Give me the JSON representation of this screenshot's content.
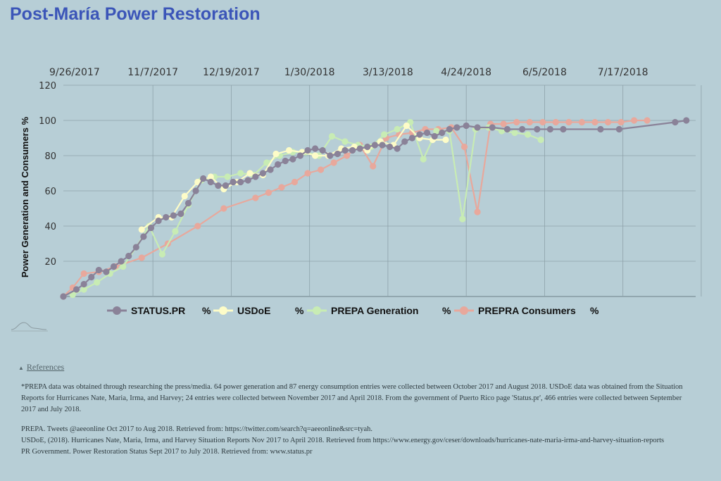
{
  "page": {
    "title": "Post-María Power Restoration",
    "references_label": "References",
    "footnote": "*PREPA data was obtained through researching the press/media. 64 power generation and 87 energy consumption entries were collected between October 2017 and August 2018. USDoE data was obtained from the Situation Reports for Hurricanes Nate, Maria, Irma, and Harvey; 24 entries were collected between November 2017 and April 2018. From the government of Puerto Rico page 'Status.pr', 466 entries were collected between September 2017 and July 2018.",
    "citations": [
      "PREPA. Tweets @aeeonline Oct 2017 to Aug 2018. Retrieved from: https://twitter.com/search?q=aeeonline&src=tyah.",
      "USDoE, (2018). Hurricanes Nate, Maria, Irma, and Harvey Situation Reports Nov 2017 to April 2018. Retrieved from https://www.energy.gov/ceser/downloads/hurricanes-nate-maria-irma-and-harvey-situation-reports",
      "PR Government. Power Restoration Status Sept 2017 to July 2018. Retrieved from: www.status.pr"
    ],
    "colors": {
      "background": "#b7ced6",
      "title": "#3b55b8"
    }
  },
  "chart_data": {
    "type": "line",
    "ylabel": "Power Generation and Consumers %",
    "ylim": [
      0,
      120
    ],
    "yticks": [
      20,
      40,
      60,
      80,
      100,
      120
    ],
    "xlim": [
      "2017-09-20",
      "2018-08-25"
    ],
    "xticks": [
      "9/26/2017",
      "11/7/2017",
      "12/19/2017",
      "1/30/2018",
      "3/13/2018",
      "4/24/2018",
      "6/5/2018",
      "7/17/2018"
    ],
    "x_axis_position": "top",
    "grid": true,
    "legend_position": "bottom",
    "series": [
      {
        "name": "STATUS.PR",
        "unit": "%",
        "color": "#8a8298",
        "x": [
          "2017-09-20",
          "2017-09-27",
          "2017-10-01",
          "2017-10-05",
          "2017-10-09",
          "2017-10-13",
          "2017-10-17",
          "2017-10-21",
          "2017-10-25",
          "2017-10-29",
          "2017-11-02",
          "2017-11-06",
          "2017-11-10",
          "2017-11-14",
          "2017-11-18",
          "2017-11-22",
          "2017-11-26",
          "2017-11-30",
          "2017-12-04",
          "2017-12-08",
          "2017-12-12",
          "2017-12-16",
          "2017-12-20",
          "2017-12-24",
          "2017-12-28",
          "2018-01-01",
          "2018-01-05",
          "2018-01-09",
          "2018-01-13",
          "2018-01-17",
          "2018-01-21",
          "2018-01-25",
          "2018-01-29",
          "2018-02-02",
          "2018-02-06",
          "2018-02-10",
          "2018-02-14",
          "2018-02-18",
          "2018-02-22",
          "2018-02-26",
          "2018-03-02",
          "2018-03-06",
          "2018-03-10",
          "2018-03-14",
          "2018-03-18",
          "2018-03-22",
          "2018-03-26",
          "2018-03-30",
          "2018-04-03",
          "2018-04-07",
          "2018-04-11",
          "2018-04-15",
          "2018-04-19",
          "2018-04-24",
          "2018-04-30",
          "2018-05-08",
          "2018-05-16",
          "2018-05-24",
          "2018-06-01",
          "2018-06-08",
          "2018-06-15",
          "2018-07-05",
          "2018-07-15",
          "2018-08-14",
          "2018-08-20"
        ],
        "values": [
          0,
          4,
          7,
          11,
          15,
          14,
          17,
          20,
          23,
          28,
          34,
          39,
          43,
          45,
          46,
          47,
          53,
          60,
          67,
          65,
          63,
          63,
          65,
          65,
          66,
          68,
          70,
          72,
          75,
          77,
          78,
          80,
          83,
          84,
          83,
          80,
          81,
          83,
          83,
          84,
          85,
          86,
          86,
          85,
          84,
          88,
          90,
          92,
          93,
          91,
          93,
          95,
          96,
          97,
          96,
          96,
          95,
          95,
          95,
          95,
          95,
          95,
          95,
          99,
          100
        ]
      },
      {
        "name": "USDoE",
        "unit": "%",
        "color": "#fdfcc8",
        "x": [
          "2017-11-01",
          "2017-11-10",
          "2017-11-17",
          "2017-11-24",
          "2017-12-01",
          "2017-12-08",
          "2017-12-15",
          "2017-12-22",
          "2017-12-29",
          "2018-01-05",
          "2018-01-12",
          "2018-01-19",
          "2018-01-26",
          "2018-02-02",
          "2018-02-09",
          "2018-02-16",
          "2018-02-23",
          "2018-03-02",
          "2018-03-09",
          "2018-03-16",
          "2018-03-23",
          "2018-03-30",
          "2018-04-06",
          "2018-04-13"
        ],
        "values": [
          38,
          45,
          45,
          57,
          65,
          68,
          61,
          65,
          70,
          69,
          81,
          83,
          82,
          80,
          80,
          84,
          85,
          83,
          88,
          86,
          97,
          90,
          89,
          89
        ]
      },
      {
        "name": "PREPA Generation",
        "unit": "%",
        "color": "#c8ecb4",
        "x": [
          "2017-09-25",
          "2017-10-01",
          "2017-10-08",
          "2017-10-15",
          "2017-10-22",
          "2017-10-29",
          "2017-11-05",
          "2017-11-12",
          "2017-11-19",
          "2017-11-26",
          "2017-12-03",
          "2017-12-10",
          "2017-12-17",
          "2017-12-24",
          "2017-12-31",
          "2018-01-07",
          "2018-01-14",
          "2018-01-21",
          "2018-01-28",
          "2018-02-04",
          "2018-02-11",
          "2018-02-18",
          "2018-02-25",
          "2018-03-04",
          "2018-03-11",
          "2018-03-18",
          "2018-03-25",
          "2018-04-01",
          "2018-04-08",
          "2018-04-15",
          "2018-04-22",
          "2018-04-29",
          "2018-05-06",
          "2018-05-13",
          "2018-05-20",
          "2018-05-27",
          "2018-06-03"
        ],
        "values": [
          1,
          4,
          8,
          13,
          17,
          28,
          40,
          24,
          37,
          52,
          66,
          68,
          68,
          70,
          69,
          76,
          80,
          82,
          82,
          80,
          91,
          88,
          86,
          85,
          92,
          95,
          99,
          78,
          94,
          94,
          44,
          95,
          96,
          94,
          93,
          92,
          89
        ]
      },
      {
        "name": "PREPRA Consumers",
        "unit": "%",
        "color": "#e8a89c",
        "x": [
          "2017-09-20",
          "2017-09-25",
          "2017-10-01",
          "2017-10-09",
          "2017-10-18",
          "2017-11-01",
          "2017-11-15",
          "2017-12-01",
          "2017-12-15",
          "2018-01-01",
          "2018-01-08",
          "2018-01-15",
          "2018-01-22",
          "2018-01-29",
          "2018-02-05",
          "2018-02-12",
          "2018-02-19",
          "2018-02-26",
          "2018-03-05",
          "2018-03-12",
          "2018-03-19",
          "2018-03-26",
          "2018-04-02",
          "2018-04-09",
          "2018-04-16",
          "2018-04-23",
          "2018-04-30",
          "2018-05-07",
          "2018-05-14",
          "2018-05-21",
          "2018-05-28",
          "2018-06-04",
          "2018-06-11",
          "2018-06-18",
          "2018-06-25",
          "2018-07-02",
          "2018-07-09",
          "2018-07-16",
          "2018-07-23",
          "2018-07-30"
        ],
        "values": [
          0,
          5,
          13,
          14,
          17,
          22,
          30,
          40,
          50,
          56,
          59,
          62,
          65,
          70,
          72,
          76,
          80,
          86,
          74,
          90,
          92,
          93,
          95,
          95,
          96,
          85,
          48,
          98,
          98,
          99,
          99,
          99,
          99,
          99,
          99,
          99,
          99,
          99,
          100,
          100
        ]
      }
    ]
  }
}
